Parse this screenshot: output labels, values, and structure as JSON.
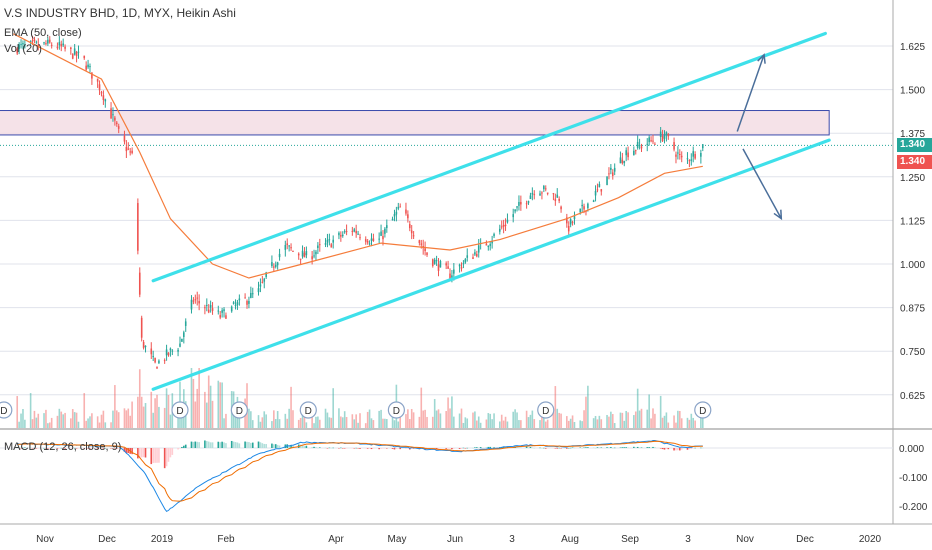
{
  "legend": {
    "title": "V.S INDUSTRY BHD, 1D, MYX, Heikin Ashi",
    "ema": "EMA (50, close)",
    "vol": "Vol (20)",
    "macd": "MACD (12, 26, close, 9)"
  },
  "price_tags": {
    "last": "1.340",
    "close": "1.340"
  },
  "colors": {
    "up": "#26a69a",
    "down": "#ef5350",
    "ema": "#f57c3b",
    "channel": "#3ee0ea",
    "zone_fill": "#f3dde4",
    "zone_border": "#3949ab",
    "arrow": "#4a6e9a",
    "macd_line": "#1e88e5",
    "signal_line": "#ef6c00",
    "grid": "#e0e3eb",
    "axis_text": "#333333"
  },
  "chart_data": {
    "type": "candlestick",
    "price_axis_ticks": [
      "1.625",
      "1.500",
      "1.375",
      "1.250",
      "1.125",
      "1.000",
      "0.875",
      "0.750",
      "0.625"
    ],
    "macd_axis_ticks": [
      "0.000",
      "-0.100",
      "-0.200"
    ],
    "time_labels": [
      "Nov",
      "Dec",
      "2019",
      "Feb",
      "Apr",
      "May",
      "Jun",
      "3",
      "Aug",
      "Sep",
      "3",
      "Nov",
      "Dec",
      "2020"
    ],
    "price_ylim": [
      0.6,
      1.7
    ],
    "macd_ylim": [
      -0.23,
      0.03
    ],
    "anchors": [
      {
        "date": "2018-10-20",
        "price": 1.62
      },
      {
        "date": "2018-11-10",
        "price": 1.63
      },
      {
        "date": "2018-11-25",
        "price": 1.59
      },
      {
        "date": "2018-12-05",
        "price": 1.5
      },
      {
        "date": "2018-12-15",
        "price": 1.36
      },
      {
        "date": "2018-12-22",
        "price": 1.3
      },
      {
        "date": "2018-12-26",
        "price": 0.78
      },
      {
        "date": "2019-01-02",
        "price": 0.71
      },
      {
        "date": "2019-01-15",
        "price": 0.77
      },
      {
        "date": "2019-01-22",
        "price": 0.9
      },
      {
        "date": "2019-02-05",
        "price": 0.85
      },
      {
        "date": "2019-02-25",
        "price": 0.92
      },
      {
        "date": "2019-03-10",
        "price": 1.05
      },
      {
        "date": "2019-03-22",
        "price": 1.02
      },
      {
        "date": "2019-04-15",
        "price": 1.1
      },
      {
        "date": "2019-04-28",
        "price": 1.06
      },
      {
        "date": "2019-05-10",
        "price": 1.16
      },
      {
        "date": "2019-05-25",
        "price": 1.02
      },
      {
        "date": "2019-06-05",
        "price": 0.97
      },
      {
        "date": "2019-06-28",
        "price": 1.08
      },
      {
        "date": "2019-07-20",
        "price": 1.22
      },
      {
        "date": "2019-08-01",
        "price": 1.19
      },
      {
        "date": "2019-08-05",
        "price": 1.1
      },
      {
        "date": "2019-08-20",
        "price": 1.2
      },
      {
        "date": "2019-09-05",
        "price": 1.32
      },
      {
        "date": "2019-09-25",
        "price": 1.37
      },
      {
        "date": "2019-10-05",
        "price": 1.29
      },
      {
        "date": "2019-10-15",
        "price": 1.34
      }
    ],
    "ema50": [
      {
        "date": "2018-10-20",
        "value": 1.66
      },
      {
        "date": "2018-12-05",
        "value": 1.53
      },
      {
        "date": "2018-12-25",
        "value": 1.32
      },
      {
        "date": "2019-01-10",
        "value": 1.13
      },
      {
        "date": "2019-02-01",
        "value": 1.0
      },
      {
        "date": "2019-02-20",
        "value": 0.96
      },
      {
        "date": "2019-03-20",
        "value": 1.0
      },
      {
        "date": "2019-04-30",
        "value": 1.06
      },
      {
        "date": "2019-06-05",
        "value": 1.04
      },
      {
        "date": "2019-07-01",
        "value": 1.07
      },
      {
        "date": "2019-08-05",
        "value": 1.13
      },
      {
        "date": "2019-09-01",
        "value": 1.19
      },
      {
        "date": "2019-09-25",
        "value": 1.26
      },
      {
        "date": "2019-10-15",
        "value": 1.28
      }
    ],
    "upper_channel": [
      {
        "date": "2019-01-01",
        "price": 0.952
      },
      {
        "date": "2019-12-18",
        "price": 1.661
      }
    ],
    "lower_channel": [
      {
        "date": "2019-01-01",
        "price": 0.641
      },
      {
        "date": "2019-12-20",
        "price": 1.355
      }
    ],
    "resistance_zone": {
      "from": "2018-10-01",
      "to": "2019-12-20",
      "low": 1.37,
      "high": 1.44
    },
    "dotted_level": 1.34,
    "dividends": [
      "2018-10-15",
      "2019-01-15",
      "2019-02-15",
      "2019-03-23",
      "2019-05-08",
      "2019-07-25",
      "2019-10-15"
    ],
    "arrows": [
      {
        "from": {
          "date": "2019-11-02",
          "price": 1.38
        },
        "to": {
          "date": "2019-11-16",
          "price": 1.6
        }
      },
      {
        "from": {
          "date": "2019-11-05",
          "price": 1.33
        },
        "to": {
          "date": "2019-11-25",
          "price": 1.13
        }
      }
    ]
  }
}
